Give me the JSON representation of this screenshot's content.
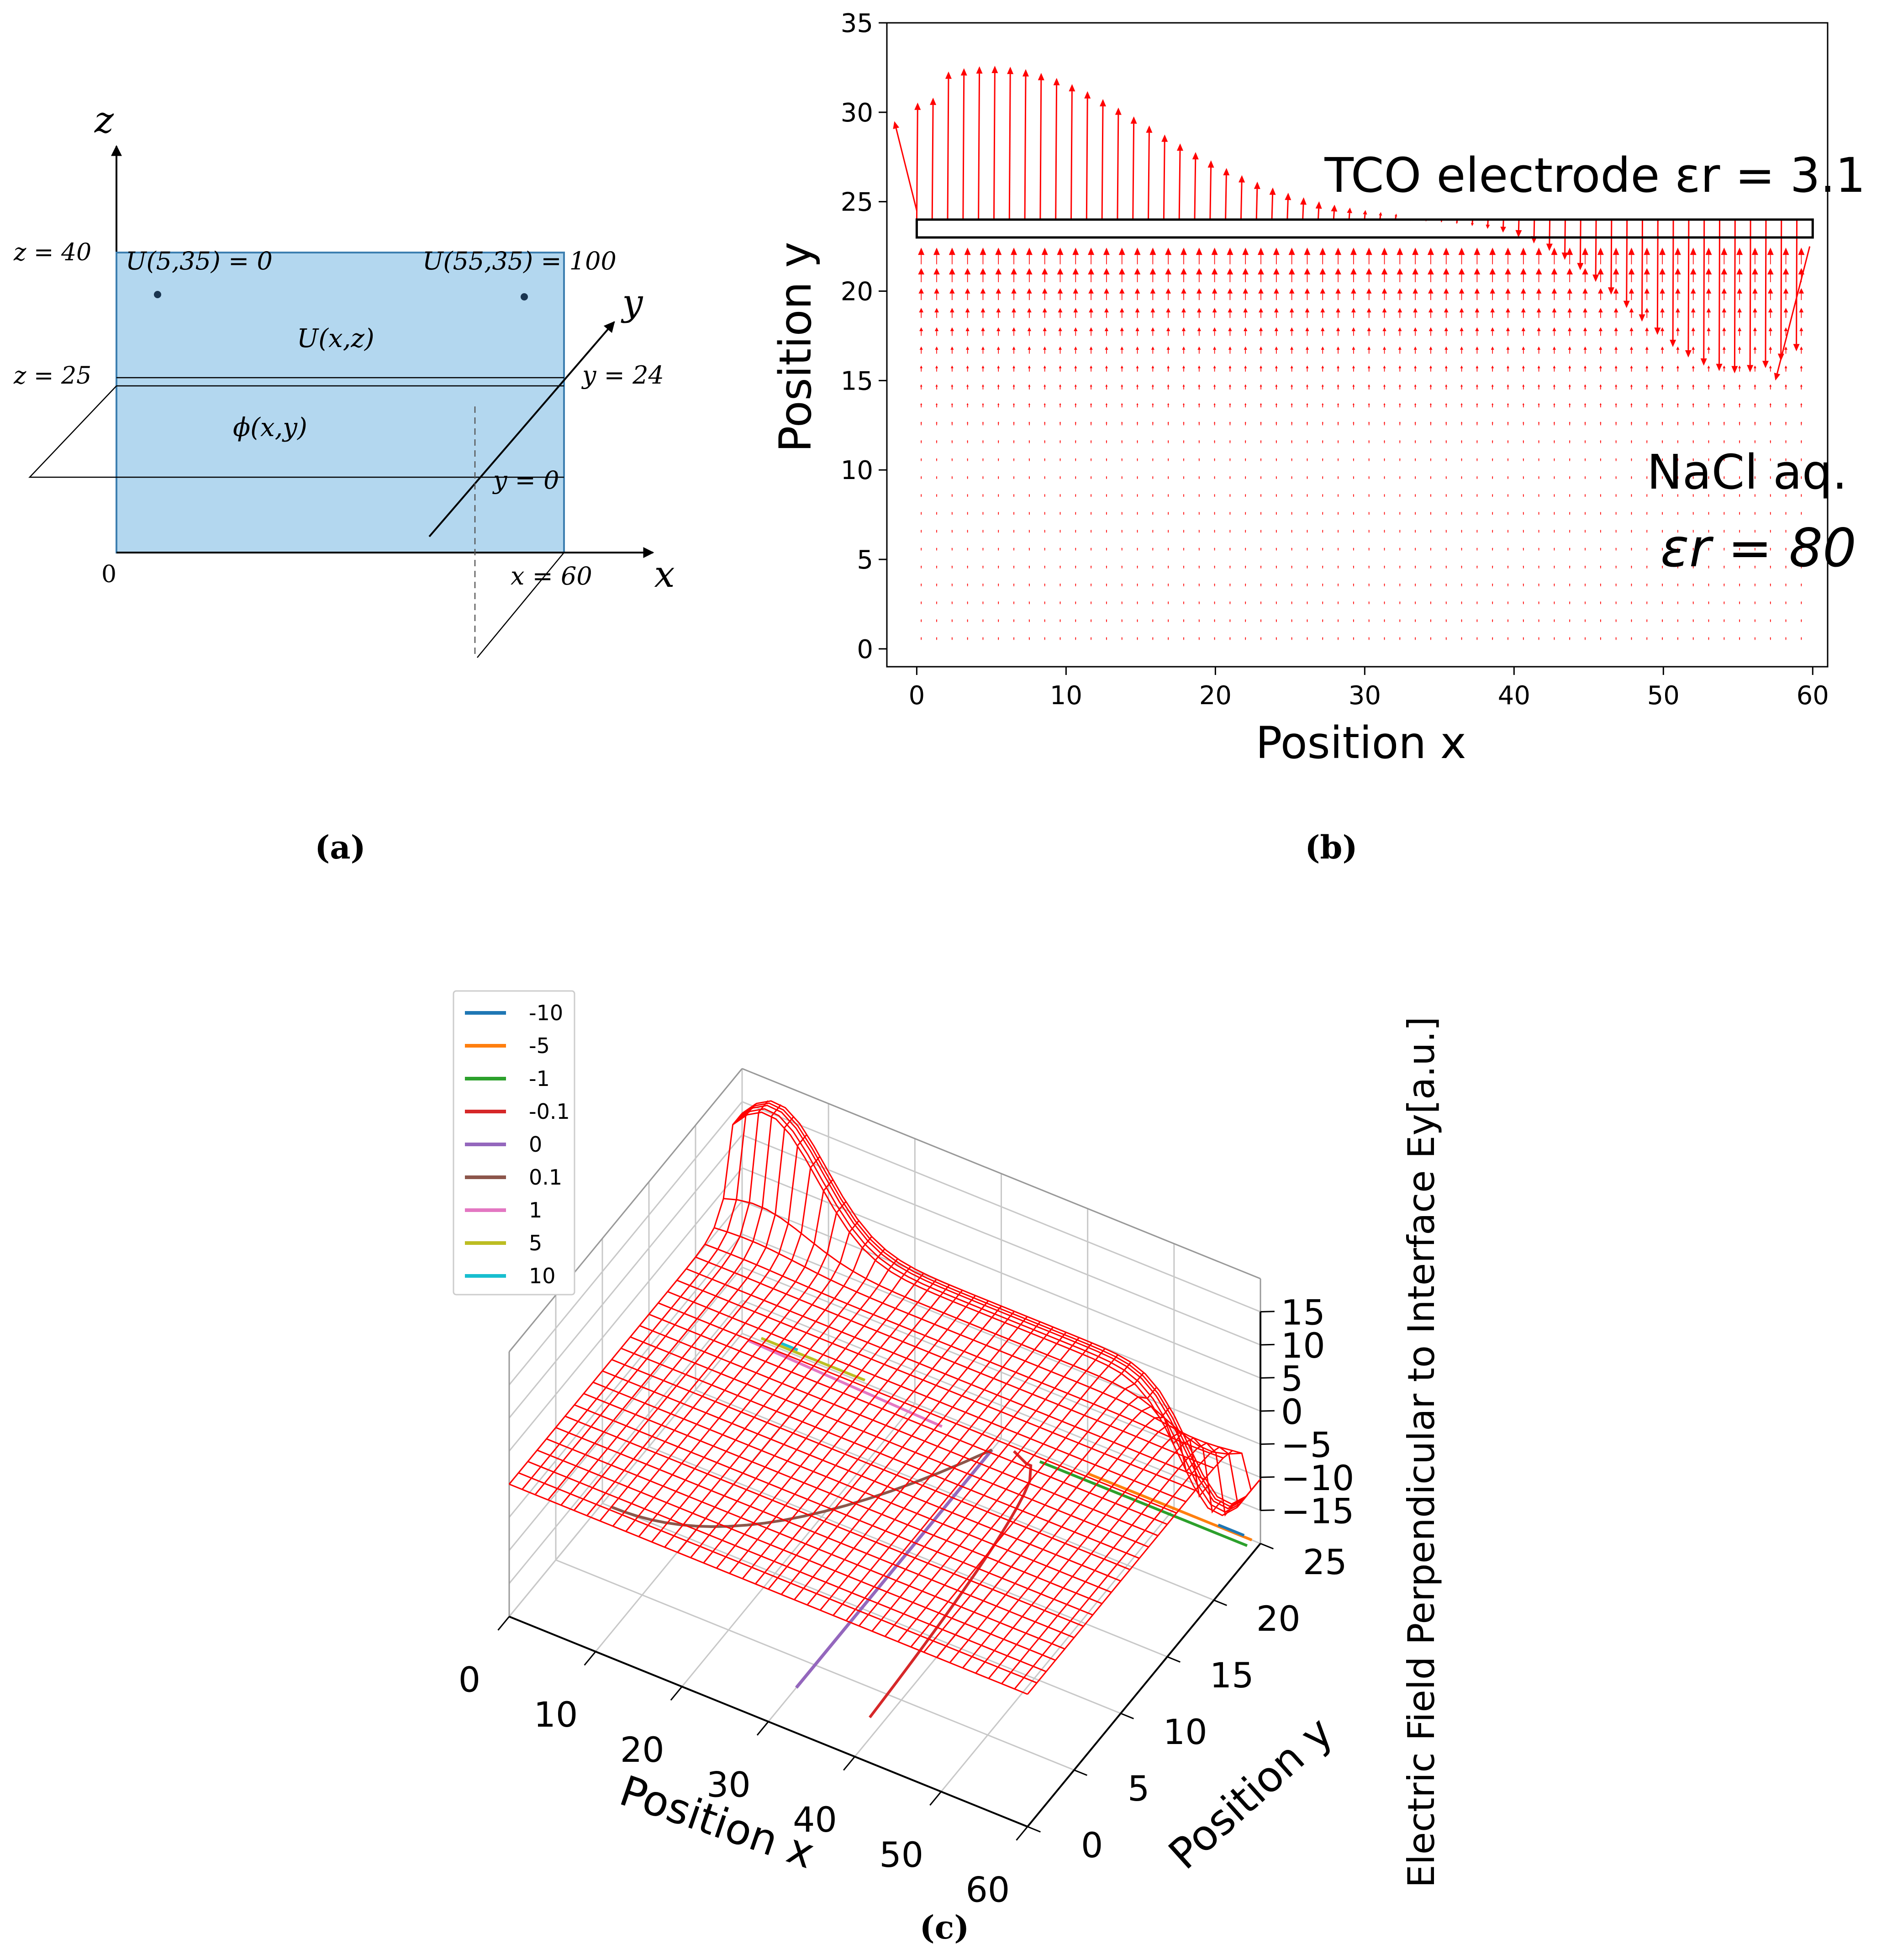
{
  "chart_data": [
    {
      "panel_label": "(a)",
      "type": "diagram",
      "axes": {
        "x": "x",
        "y": "y",
        "z": "z"
      },
      "annotations": {
        "z40": "z = 40",
        "z25": "z = 25",
        "origin": "0",
        "y24": "y = 24",
        "y0": "y = 0",
        "x60": "x = 60",
        "u_left": "U(5,35) = 0",
        "u_right": "U(55,35) = 100",
        "u_region": "U(x,z)",
        "phi_region": "ϕ(x,y)"
      },
      "colors": {
        "block": "#b3d7ef",
        "edge": "#3d7fb0",
        "point": "#1a3550"
      }
    },
    {
      "panel_label": "(b)",
      "type": "quiver",
      "xlabel": "Position x",
      "ylabel": "Position y",
      "xlim": [
        -2,
        61
      ],
      "ylim": [
        -1,
        35
      ],
      "xticks": [
        0,
        10,
        20,
        30,
        40,
        50,
        60
      ],
      "yticks": [
        0,
        5,
        10,
        15,
        20,
        25,
        30,
        35
      ],
      "electrode_box": {
        "x0": 0,
        "x1": 60,
        "y0": 23,
        "y1": 24
      },
      "annotations": {
        "tco": "TCO electrode εr = 3.1",
        "nacl": "NaCl aq.",
        "eps80": "εr = 80"
      },
      "arrow_color": "#ff0000"
    },
    {
      "panel_label": "(c)",
      "type": "surface3d",
      "xlabel": "Position x",
      "ylabel": "Position y",
      "zlabel": "Electric Field Perpendicular to Interface Ey[a.u.]",
      "xticks": [
        0,
        10,
        20,
        30,
        40,
        50,
        60
      ],
      "yticks": [
        0,
        5,
        10,
        15,
        20,
        25
      ],
      "zticks": [
        15,
        10,
        5,
        0,
        -5,
        -10,
        -15
      ],
      "xlim": [
        0,
        60
      ],
      "ylim": [
        0,
        25
      ],
      "zlim": [
        -20,
        20
      ],
      "legend": [
        {
          "name": "-10",
          "color": "#1f77b4"
        },
        {
          "name": "-5",
          "color": "#ff7f0e"
        },
        {
          "name": "-1",
          "color": "#2ca02c"
        },
        {
          "name": "-0.1",
          "color": "#d62728"
        },
        {
          "name": "0",
          "color": "#9467bd"
        },
        {
          "name": "0.1",
          "color": "#8c564b"
        },
        {
          "name": "1",
          "color": "#e377c2"
        },
        {
          "name": "5",
          "color": "#bcbd22"
        },
        {
          "name": "10",
          "color": "#17becf"
        }
      ],
      "surface_color": "#ff0000"
    }
  ]
}
